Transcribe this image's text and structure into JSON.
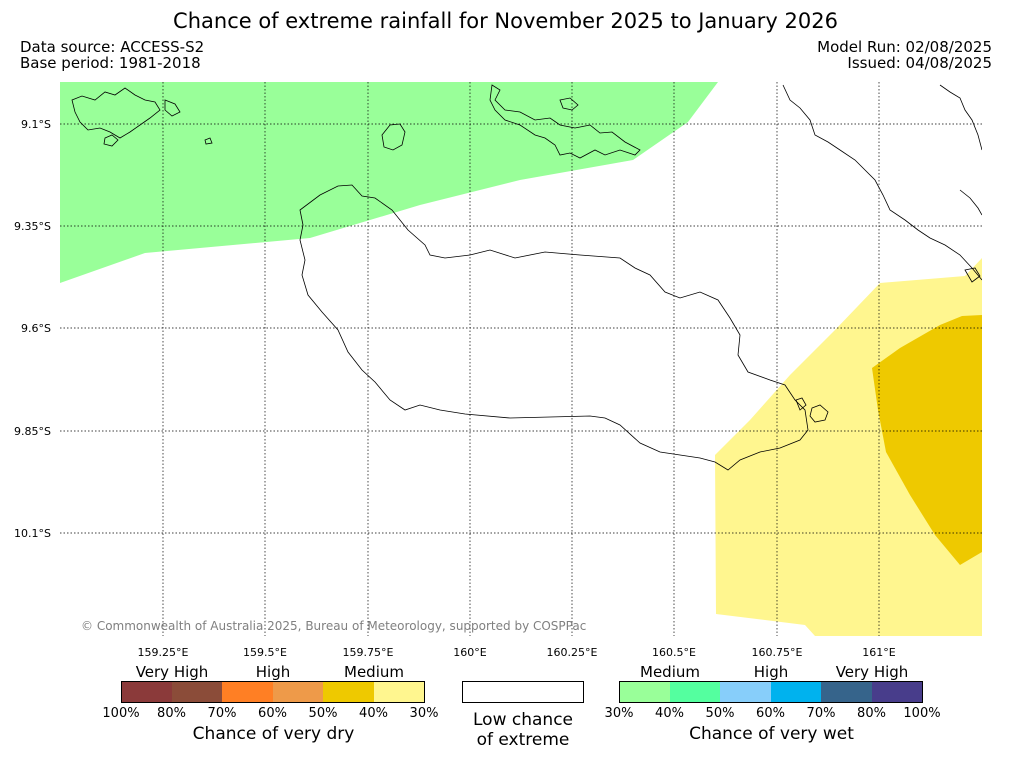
{
  "title": "Chance of extreme rainfall for November 2025 to January 2026",
  "meta": {
    "data_source": "Data source: ACCESS-S2",
    "base_period": "Base period: 1981-2018",
    "model_run": "Model Run: 02/08/2025",
    "issued": "Issued: 04/08/2025"
  },
  "map": {
    "lat_ticks": [
      "9.1°S",
      "9.35°S",
      "9.6°S",
      "9.85°S",
      "10.1°S"
    ],
    "lon_ticks": [
      "159.25°E",
      "159.5°E",
      "159.75°E",
      "160°E",
      "160.25°E",
      "160.5°E",
      "160.75°E",
      "161°E"
    ],
    "colors": {
      "wet_medium": "#99ff99",
      "dry_medium": "#fff68f",
      "dry_high": "#eec900"
    },
    "copyright": "© Commonwealth of Australia 2025, Bureau of Meteorology, supported by COSPPac"
  },
  "legend": {
    "dry": {
      "labels": [
        "Very High",
        "High",
        "Medium"
      ],
      "colors": [
        "#8b3a3a",
        "#8b4c39",
        "#ff7f24",
        "#ee9a49",
        "#eec900",
        "#fff68f"
      ],
      "percents": [
        "100%",
        "80%",
        "70%",
        "60%",
        "50%",
        "40%",
        "30%"
      ],
      "title": "Chance of very dry"
    },
    "low": {
      "title_line1": "Low chance",
      "title_line2": "of extreme"
    },
    "wet": {
      "labels": [
        "Medium",
        "High",
        "Very High"
      ],
      "colors": [
        "#99ff99",
        "#54ff9f",
        "#87cefa",
        "#00b2ee",
        "#36648b",
        "#483d8b"
      ],
      "percents": [
        "30%",
        "40%",
        "50%",
        "60%",
        "70%",
        "80%",
        "100%"
      ],
      "title": "Chance of very wet"
    }
  }
}
